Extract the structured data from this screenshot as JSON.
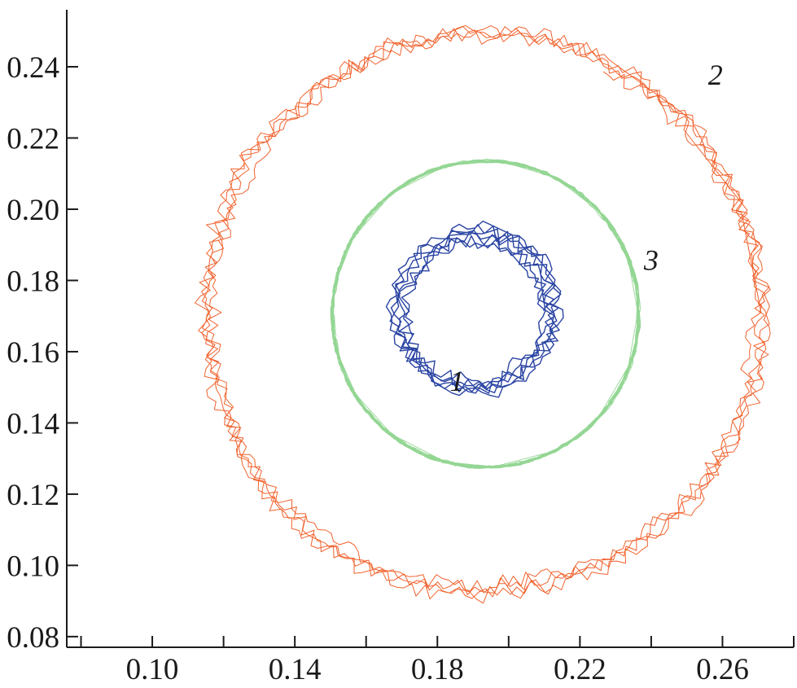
{
  "chart_data": {
    "type": "line",
    "title": "",
    "xlabel": "",
    "ylabel": "",
    "xlim": [
      0.076,
      0.28
    ],
    "ylim": [
      0.077,
      0.256
    ],
    "x_ticks": [
      0.08,
      0.1,
      0.12,
      0.14,
      0.16,
      0.18,
      0.2,
      0.22,
      0.24,
      0.26,
      0.28
    ],
    "x_tick_labels": [
      {
        "value": 0.1,
        "label": "0.10"
      },
      {
        "value": 0.14,
        "label": "0.14"
      },
      {
        "value": 0.18,
        "label": "0.18"
      },
      {
        "value": 0.22,
        "label": "0.22"
      },
      {
        "value": 0.26,
        "label": "0.26"
      }
    ],
    "y_tick_labels": [
      {
        "value": 0.08,
        "label": "0.08"
      },
      {
        "value": 0.1,
        "label": "0.10"
      },
      {
        "value": 0.12,
        "label": "0.12"
      },
      {
        "value": 0.14,
        "label": "0.14"
      },
      {
        "value": 0.16,
        "label": "0.16"
      },
      {
        "value": 0.18,
        "label": "0.18"
      },
      {
        "value": 0.2,
        "label": "0.20"
      },
      {
        "value": 0.22,
        "label": "0.22"
      },
      {
        "value": 0.24,
        "label": "0.24"
      }
    ],
    "grid": false,
    "series": [
      {
        "id": "1",
        "label": "1",
        "color": "#1f3a9e",
        "center": [
          0.1905,
          0.1715
        ],
        "radius": 0.021,
        "label_pos": [
          0.1855,
          0.149
        ]
      },
      {
        "id": "2",
        "label": "2",
        "color": "#f05a22",
        "center": [
          0.193,
          0.171
        ],
        "radius": 0.078,
        "label_pos": [
          0.258,
          0.235
        ]
      },
      {
        "id": "3",
        "label": "3",
        "color": "#3cb43c",
        "center": [
          0.1935,
          0.1705
        ],
        "radius": 0.043,
        "label_pos": [
          0.24,
          0.183
        ]
      }
    ]
  }
}
